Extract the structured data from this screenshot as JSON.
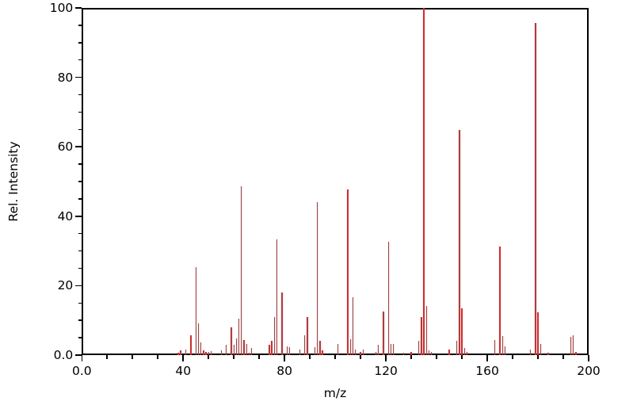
{
  "chart_data": {
    "type": "bar",
    "subtype": "mass-spectrum-stick-plot",
    "title": "",
    "xlabel": "m/z",
    "ylabel": "Rel. Intensity",
    "xlim": [
      0,
      200
    ],
    "ylim": [
      0,
      100
    ],
    "grid": false,
    "legend": null,
    "bar_color": "#ee2222",
    "axis_color": "#000000",
    "background_color": "#ffffff",
    "x_major_tick_labels": [
      "0.0",
      "40",
      "80",
      "120",
      "160",
      "200"
    ],
    "x_major_tick_values": [
      0,
      40,
      80,
      120,
      160,
      200
    ],
    "x_minor_tick_step": 10,
    "y_major_tick_labels": [
      "0.0",
      "20",
      "40",
      "60",
      "80",
      "100"
    ],
    "y_major_tick_values": [
      0,
      20,
      40,
      60,
      80,
      100
    ],
    "y_minor_tick_step": 5,
    "peaks_mz_intensity": [
      [
        38,
        0.6
      ],
      [
        39,
        1.4
      ],
      [
        41,
        1.5
      ],
      [
        43,
        5.6
      ],
      [
        45,
        25.4
      ],
      [
        46,
        9.1
      ],
      [
        47,
        3.7
      ],
      [
        48,
        1.3
      ],
      [
        49,
        0.9
      ],
      [
        50,
        1.0
      ],
      [
        51,
        1.2
      ],
      [
        55,
        1.4
      ],
      [
        57,
        3.0
      ],
      [
        59,
        8.0
      ],
      [
        60,
        3.0
      ],
      [
        61,
        4.8
      ],
      [
        62,
        10.5
      ],
      [
        63,
        48.6
      ],
      [
        64,
        4.4
      ],
      [
        65,
        3.3
      ],
      [
        66,
        0.7
      ],
      [
        67,
        2.1
      ],
      [
        74,
        2.9
      ],
      [
        75,
        4.0
      ],
      [
        76,
        11.0
      ],
      [
        77,
        33.4
      ],
      [
        79,
        18.0
      ],
      [
        81,
        2.6
      ],
      [
        82,
        2.3
      ],
      [
        86,
        1.5
      ],
      [
        88,
        5.6
      ],
      [
        89,
        11.0
      ],
      [
        92,
        2.2
      ],
      [
        93,
        44.1
      ],
      [
        94,
        4.1
      ],
      [
        95,
        1.4
      ],
      [
        101,
        3.2
      ],
      [
        105,
        47.7
      ],
      [
        106,
        4.5
      ],
      [
        107,
        16.6
      ],
      [
        108,
        1.5
      ],
      [
        110,
        1.0
      ],
      [
        111,
        1.5
      ],
      [
        116,
        1.0
      ],
      [
        117,
        2.9
      ],
      [
        119,
        12.6
      ],
      [
        121,
        32.6
      ],
      [
        122,
        3.1
      ],
      [
        123,
        3.3
      ],
      [
        127,
        0.7
      ],
      [
        130,
        0.8
      ],
      [
        133,
        4.0
      ],
      [
        134,
        11.0
      ],
      [
        135,
        100.0
      ],
      [
        136,
        14.2
      ],
      [
        137,
        1.4
      ],
      [
        138,
        0.9
      ],
      [
        145,
        1.7
      ],
      [
        148,
        4.0
      ],
      [
        149,
        64.8
      ],
      [
        150,
        13.5
      ],
      [
        151,
        2.0
      ],
      [
        152,
        0.8
      ],
      [
        163,
        4.3
      ],
      [
        165,
        31.2
      ],
      [
        166,
        5.5
      ],
      [
        167,
        2.5
      ],
      [
        177,
        1.5
      ],
      [
        179,
        95.6
      ],
      [
        180,
        12.3
      ],
      [
        181,
        3.2
      ],
      [
        184,
        0.7
      ],
      [
        193,
        5.3
      ],
      [
        194,
        5.6
      ],
      [
        195,
        1.0
      ]
    ]
  }
}
